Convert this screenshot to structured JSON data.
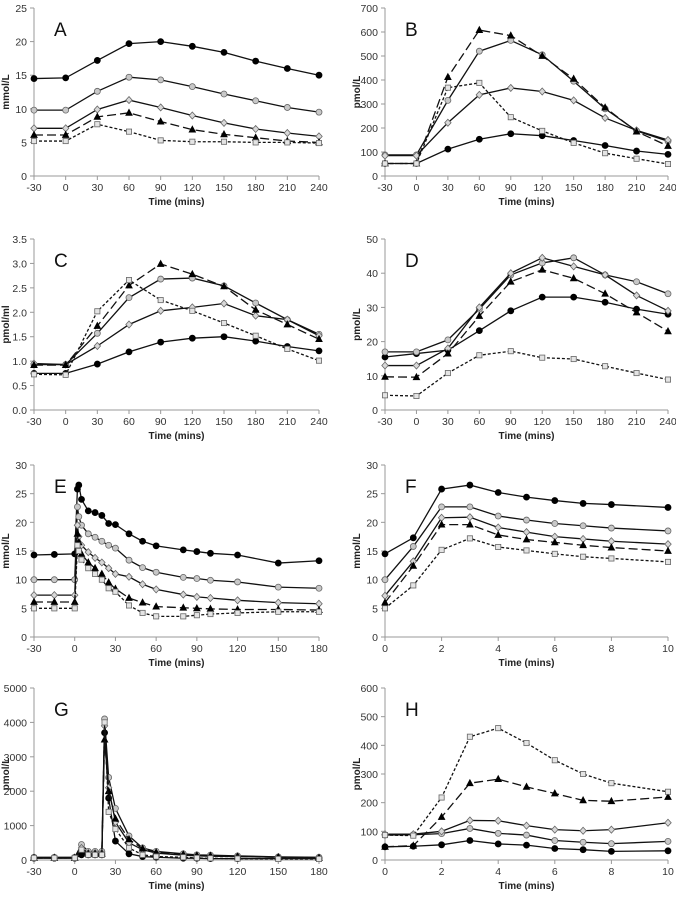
{
  "series_styles": [
    {
      "name": "series-1",
      "marker": "circle",
      "fill": "#000000",
      "dash": ""
    },
    {
      "name": "series-2",
      "marker": "circle",
      "fill": "#c8c8c8",
      "dash": ""
    },
    {
      "name": "series-3",
      "marker": "diamond",
      "fill": "#d8d8d8",
      "dash": ""
    },
    {
      "name": "series-4",
      "marker": "triangle",
      "fill": "#000000",
      "dash": "9,4"
    },
    {
      "name": "series-5",
      "marker": "square",
      "fill": "#e4e4e4",
      "dash": "3,2"
    }
  ],
  "chart_data": [
    {
      "panel": "A",
      "type": "line",
      "xlabel": "Time (mins)",
      "ylabel": "mmol/L",
      "ylim": [
        0,
        25
      ],
      "yticks": [
        0,
        5,
        10,
        15,
        20,
        25
      ],
      "xlim": [
        -30,
        240
      ],
      "xticks": [
        -30,
        0,
        30,
        60,
        90,
        120,
        150,
        180,
        210,
        240
      ],
      "x": [
        -30,
        0,
        30,
        60,
        90,
        120,
        150,
        180,
        210,
        240
      ],
      "series": [
        {
          "values": [
            14.5,
            14.6,
            17.2,
            19.7,
            20,
            19.3,
            18.4,
            17.1,
            16,
            15
          ]
        },
        {
          "values": [
            9.8,
            9.8,
            12.6,
            14.7,
            14.3,
            13.3,
            12.2,
            11.2,
            10.2,
            9.5
          ]
        },
        {
          "values": [
            7.1,
            7.1,
            9.9,
            11.3,
            10.2,
            9,
            7.9,
            7,
            6.4,
            5.9
          ]
        },
        {
          "values": [
            6.1,
            6.1,
            8.8,
            9.4,
            8.1,
            6.9,
            6.2,
            5.7,
            5.2,
            5
          ]
        },
        {
          "values": [
            5.2,
            5.2,
            7.7,
            6.6,
            5.3,
            5.1,
            5.1,
            5,
            5,
            4.9
          ]
        }
      ]
    },
    {
      "panel": "B",
      "type": "line",
      "xlabel": "Time (mins)",
      "ylabel": "pmol/L",
      "ylim": [
        0,
        700
      ],
      "yticks": [
        0,
        100,
        200,
        300,
        400,
        500,
        600,
        700
      ],
      "xlim": [
        -30,
        240
      ],
      "xticks": [
        -30,
        0,
        30,
        60,
        90,
        120,
        150,
        180,
        210,
        240
      ],
      "x": [
        -30,
        0,
        30,
        60,
        90,
        120,
        150,
        180,
        210,
        240
      ],
      "series": [
        {
          "values": [
            52,
            52,
            112,
            153,
            176,
            168,
            148,
            127,
            104,
            90
          ]
        },
        {
          "values": [
            88,
            88,
            315,
            520,
            565,
            505,
            395,
            280,
            188,
            145
          ]
        },
        {
          "values": [
            85,
            85,
            222,
            338,
            367,
            352,
            315,
            242,
            190,
            150
          ]
        },
        {
          "values": [
            52,
            52,
            412,
            608,
            585,
            500,
            405,
            285,
            185,
            125
          ]
        },
        {
          "values": [
            52,
            52,
            368,
            388,
            245,
            188,
            138,
            95,
            72,
            50
          ]
        }
      ]
    },
    {
      "panel": "C",
      "type": "line",
      "xlabel": "Time (mins)",
      "ylabel": "pmol/ml",
      "ylim": [
        0,
        3.5
      ],
      "yticks": [
        "0.0",
        "0.5",
        "1.0",
        "1.5",
        "2.0",
        "2.5",
        "3.0",
        "3.5"
      ],
      "xlim": [
        -30,
        240
      ],
      "xticks": [
        -30,
        0,
        30,
        60,
        90,
        120,
        150,
        180,
        210,
        240
      ],
      "x": [
        -30,
        0,
        30,
        60,
        90,
        120,
        150,
        180,
        210,
        240
      ],
      "series": [
        {
          "values": [
            0.75,
            0.75,
            0.94,
            1.19,
            1.39,
            1.47,
            1.5,
            1.41,
            1.3,
            1.21
          ]
        },
        {
          "values": [
            0.93,
            0.93,
            1.57,
            2.3,
            2.68,
            2.7,
            2.54,
            2.19,
            1.85,
            1.55
          ]
        },
        {
          "values": [
            0.95,
            0.93,
            1.31,
            1.75,
            2.03,
            2.1,
            2.18,
            1.93,
            1.85,
            1.52
          ]
        },
        {
          "values": [
            0.92,
            0.92,
            1.72,
            2.55,
            2.99,
            2.78,
            2.53,
            2.05,
            1.75,
            1.45
          ]
        },
        {
          "values": [
            0.73,
            0.72,
            2.02,
            2.66,
            2.25,
            2.03,
            1.78,
            1.52,
            1.25,
            1.01
          ]
        }
      ]
    },
    {
      "panel": "D",
      "type": "line",
      "xlabel": "Time (mins)",
      "ylabel": "pmol/L",
      "ylim": [
        0,
        50
      ],
      "yticks": [
        0,
        10,
        20,
        30,
        40,
        50
      ],
      "xlim": [
        -30,
        240
      ],
      "xticks": [
        -30,
        0,
        30,
        60,
        90,
        120,
        150,
        180,
        210,
        240
      ],
      "x": [
        -30,
        0,
        30,
        60,
        90,
        120,
        150,
        180,
        210,
        240
      ],
      "series": [
        {
          "values": [
            15.5,
            16.5,
            17.5,
            23.2,
            29,
            33,
            33,
            31.5,
            29.5,
            28
          ]
        },
        {
          "values": [
            17,
            17,
            20.5,
            29.5,
            39.5,
            43,
            44.5,
            39.5,
            37.5,
            34
          ]
        },
        {
          "values": [
            13,
            13,
            18,
            30,
            40,
            44.5,
            42,
            39.5,
            33.5,
            29
          ]
        },
        {
          "values": [
            9.7,
            9.6,
            16.5,
            27.5,
            37.5,
            41,
            38.5,
            34,
            28.5,
            23
          ]
        },
        {
          "values": [
            4.3,
            4.1,
            10.8,
            16,
            17.2,
            15.3,
            14.9,
            12.8,
            10.8,
            8.9
          ]
        }
      ]
    },
    {
      "panel": "E",
      "type": "line",
      "xlabel": "Time (mins)",
      "ylabel": "mmol/L",
      "ylim": [
        0,
        30
      ],
      "yticks": [
        0,
        5,
        10,
        15,
        20,
        25,
        30
      ],
      "xlim": [
        -30,
        180
      ],
      "xticks": [
        -30,
        0,
        30,
        60,
        90,
        120,
        150,
        180
      ],
      "x": [
        -30,
        -15,
        0,
        2,
        3,
        5,
        10,
        15,
        20,
        25,
        30,
        40,
        50,
        60,
        80,
        90,
        100,
        120,
        150,
        180
      ],
      "series": [
        {
          "values": [
            14.3,
            14.4,
            14.5,
            25.8,
            26.5,
            24,
            22,
            21.7,
            21.2,
            19.8,
            19.6,
            18,
            16.7,
            15.9,
            15.2,
            14.9,
            14.6,
            14.3,
            12.9,
            13.3
          ]
        },
        {
          "values": [
            10,
            10,
            10,
            22.7,
            21,
            19.5,
            18,
            17.4,
            16.7,
            16,
            15.5,
            13.4,
            12.1,
            11.3,
            10.4,
            10.2,
            9.9,
            9.6,
            8.7,
            8.5
          ]
        },
        {
          "values": [
            7.3,
            7.3,
            7.3,
            19.5,
            17.5,
            16,
            14.8,
            13.8,
            13,
            12,
            11,
            10.5,
            9.2,
            8.3,
            7.4,
            7,
            6.8,
            6.4,
            6,
            5.8
          ]
        },
        {
          "values": [
            6.1,
            6.1,
            6.1,
            18,
            16.5,
            14.5,
            13,
            12,
            11,
            9.5,
            8.4,
            6.8,
            6,
            5.3,
            5.1,
            5,
            4.9,
            4.8,
            4.8,
            4.7
          ]
        },
        {
          "values": [
            5,
            5,
            5,
            16,
            15,
            13.5,
            12,
            11,
            10,
            8.5,
            7.9,
            5.5,
            4.2,
            3.6,
            3.6,
            3.8,
            4,
            4.2,
            4.4,
            4.4
          ]
        }
      ]
    },
    {
      "panel": "F",
      "type": "line",
      "xlabel": "Time (mins)",
      "ylabel": "mmol/L",
      "ylim": [
        0,
        30
      ],
      "yticks": [
        0,
        5,
        10,
        15,
        20,
        25,
        30
      ],
      "xlim": [
        0,
        10
      ],
      "xticks": [
        0,
        2,
        4,
        6,
        8,
        10
      ],
      "x": [
        0,
        1,
        2,
        3,
        4,
        5,
        6,
        7,
        8,
        10
      ],
      "series": [
        {
          "values": [
            14.5,
            17.3,
            25.8,
            26.5,
            25.2,
            24.4,
            23.8,
            23.3,
            23.1,
            22.6
          ]
        },
        {
          "values": [
            10,
            15.8,
            22.7,
            22.7,
            21.1,
            20.4,
            19.8,
            19.4,
            19,
            18.5
          ]
        },
        {
          "values": [
            7.2,
            13.2,
            20.8,
            20.9,
            19.1,
            18.3,
            17.5,
            17.1,
            16.7,
            16.2
          ]
        },
        {
          "values": [
            6,
            12.4,
            19.6,
            19.6,
            17.8,
            17,
            16.5,
            16,
            15.6,
            15
          ]
        },
        {
          "values": [
            5,
            9,
            15.2,
            17.2,
            15.7,
            15.1,
            14.5,
            14,
            13.7,
            13.1
          ]
        }
      ]
    },
    {
      "panel": "G",
      "type": "line",
      "xlabel": "Time (mins)",
      "ylabel": "pmol/L",
      "ylim": [
        0,
        5000
      ],
      "yticks": [
        0,
        1000,
        2000,
        3000,
        4000,
        5000
      ],
      "xlim": [
        -30,
        180
      ],
      "xticks": [
        -30,
        0,
        30,
        60,
        90,
        120,
        150,
        180
      ],
      "x": [
        -30,
        -15,
        0,
        5,
        10,
        15,
        20,
        22,
        25,
        30,
        40,
        50,
        60,
        80,
        90,
        100,
        120,
        150,
        180
      ],
      "series": [
        {
          "values": [
            50,
            50,
            50,
            150,
            150,
            150,
            150,
            3700,
            1800,
            550,
            180,
            100,
            80,
            50,
            50,
            40,
            40,
            40,
            40
          ]
        },
        {
          "values": [
            80,
            80,
            80,
            450,
            250,
            250,
            250,
            4100,
            2400,
            1500,
            700,
            350,
            250,
            180,
            150,
            140,
            120,
            90,
            80
          ]
        },
        {
          "values": [
            70,
            70,
            70,
            350,
            200,
            200,
            200,
            3900,
            2100,
            1100,
            500,
            300,
            200,
            140,
            120,
            110,
            100,
            80,
            70
          ]
        },
        {
          "values": [
            60,
            60,
            60,
            250,
            180,
            180,
            180,
            3500,
            2000,
            1200,
            600,
            330,
            220,
            160,
            130,
            120,
            100,
            80,
            60
          ]
        },
        {
          "values": [
            60,
            60,
            60,
            300,
            150,
            150,
            150,
            4000,
            1400,
            900,
            350,
            150,
            100,
            80,
            60,
            50,
            40,
            30,
            30
          ]
        }
      ]
    },
    {
      "panel": "H",
      "type": "line",
      "xlabel": "Time (mins)",
      "ylabel": "pmol/L",
      "ylim": [
        0,
        600
      ],
      "yticks": [
        0,
        100,
        200,
        300,
        400,
        500,
        600
      ],
      "xlim": [
        0,
        10
      ],
      "xticks": [
        0,
        2,
        4,
        6,
        8,
        10
      ],
      "x": [
        0,
        1,
        2,
        3,
        4,
        5,
        6,
        7,
        8,
        10
      ],
      "series": [
        {
          "values": [
            46,
            48,
            53,
            68,
            56,
            52,
            40,
            36,
            30,
            32
          ]
        },
        {
          "values": [
            87,
            88,
            92,
            110,
            93,
            87,
            68,
            62,
            57,
            65
          ]
        },
        {
          "values": [
            90,
            90,
            100,
            138,
            137,
            120,
            106,
            102,
            106,
            130
          ]
        },
        {
          "values": [
            46,
            50,
            150,
            268,
            282,
            255,
            232,
            208,
            205,
            220
          ]
        },
        {
          "values": [
            87,
            85,
            218,
            430,
            460,
            408,
            348,
            300,
            268,
            238
          ]
        }
      ]
    }
  ]
}
